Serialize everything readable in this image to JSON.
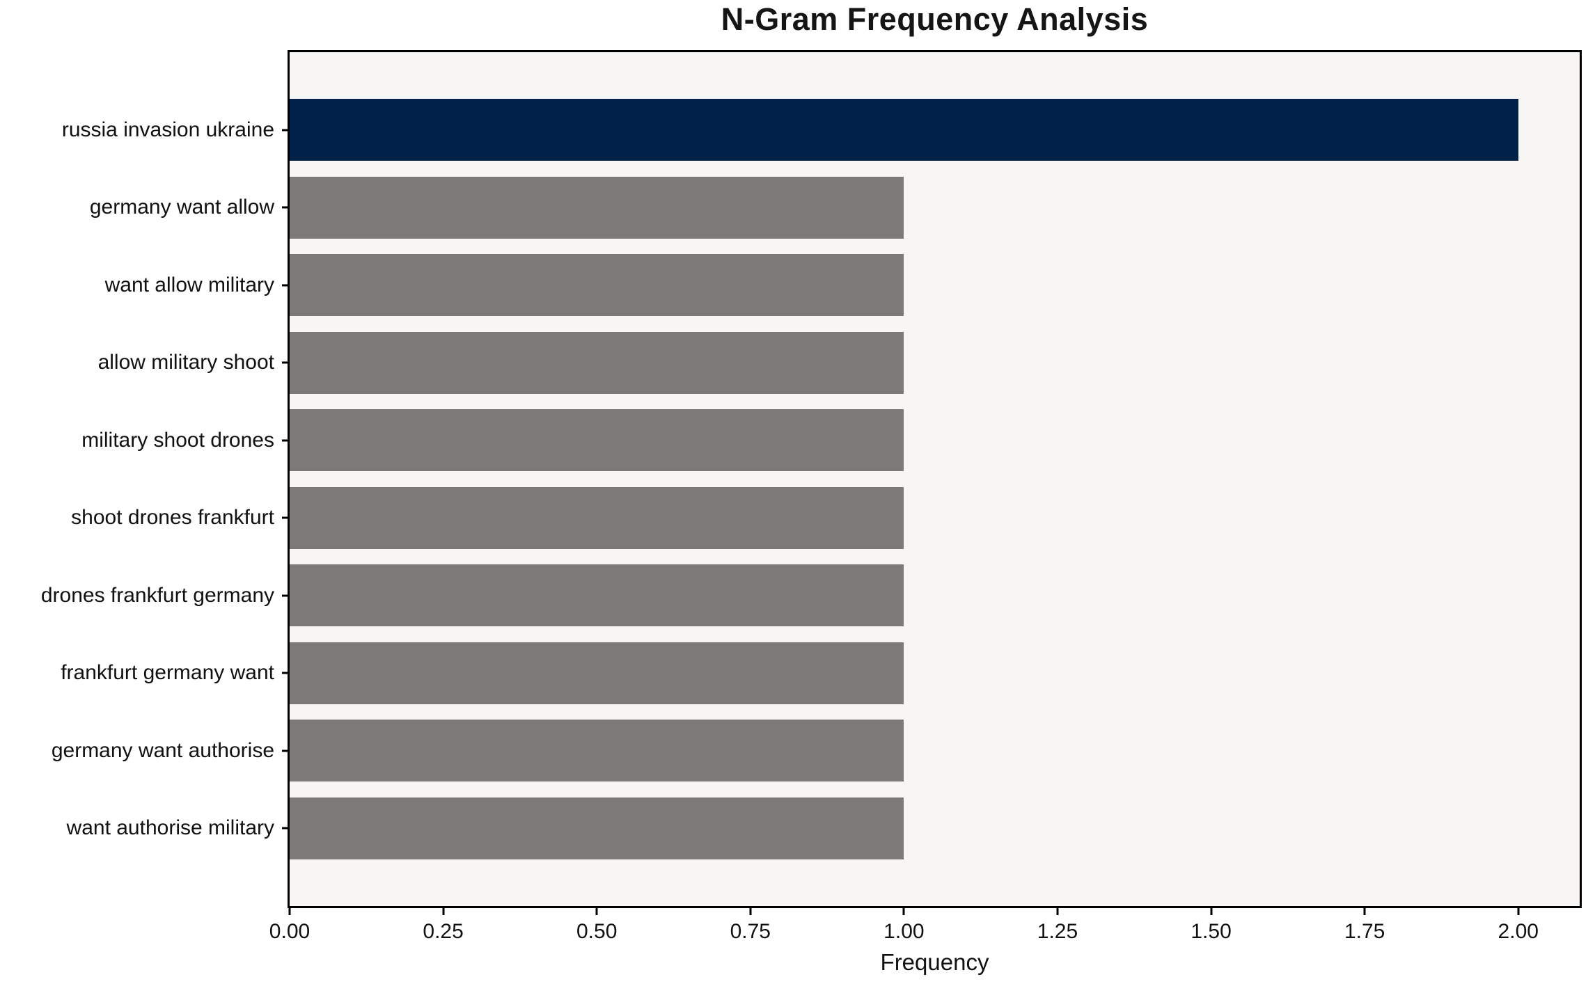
{
  "title": "N-Gram Frequency Analysis",
  "chart_data": {
    "type": "bar",
    "orientation": "horizontal",
    "title": "N-Gram Frequency Analysis",
    "xlabel": "Frequency",
    "ylabel": "",
    "categories": [
      "russia invasion ukraine",
      "germany want allow",
      "want allow military",
      "allow military shoot",
      "military shoot drones",
      "shoot drones frankfurt",
      "drones frankfurt germany",
      "frankfurt germany want",
      "germany want authorise",
      "want authorise military"
    ],
    "values": [
      2,
      1,
      1,
      1,
      1,
      1,
      1,
      1,
      1,
      1
    ],
    "xlim": [
      0,
      2.1
    ],
    "xticks": [
      "0.00",
      "0.25",
      "0.50",
      "0.75",
      "1.00",
      "1.25",
      "1.50",
      "1.75",
      "2.00"
    ],
    "xtick_values": [
      0,
      0.25,
      0.5,
      0.75,
      1.0,
      1.25,
      1.5,
      1.75,
      2.0
    ],
    "grid": false,
    "legend": null,
    "colors": {
      "highlight_bar": "#022149",
      "default_bar": "#7b7a77",
      "plot_background": "#f7f6f5",
      "page_background": "#ffffff",
      "spine": "#000000",
      "text": "#111111"
    },
    "bar_colors": [
      "#022149",
      "#7b7a77",
      "#7b7a77",
      "#7b7a77",
      "#7b7a77",
      "#7b7a77",
      "#7b7a77",
      "#7b7a77",
      "#7b7a77",
      "#7b7a77"
    ]
  }
}
